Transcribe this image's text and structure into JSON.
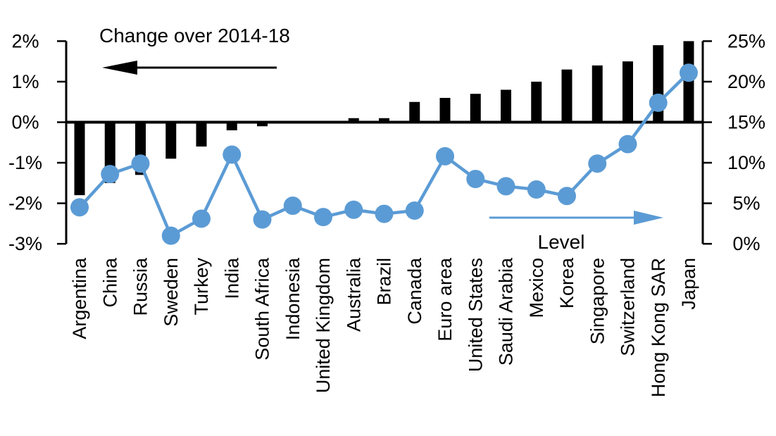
{
  "chart_data": {
    "type": "combo-bar-line",
    "categories": [
      "Argentina",
      "China",
      "Russia",
      "Sweden",
      "Turkey",
      "India",
      "South Africa",
      "Indonesia",
      "United Kingdom",
      "Australia",
      "Brazil",
      "Canada",
      "Euro area",
      "United States",
      "Saudi Arabia",
      "Mexico",
      "Korea",
      "Singapore",
      "Switzerland",
      "Hong Kong SAR",
      "Japan"
    ],
    "series": [
      {
        "name": "Change over 2014-18",
        "type": "bar",
        "axis": "left",
        "color": "#000000",
        "values": [
          -1.8,
          -1.5,
          -1.3,
          -0.9,
          -0.6,
          -0.2,
          -0.1,
          0,
          0,
          0.1,
          0.1,
          0.5,
          0.6,
          0.7,
          0.8,
          1.0,
          1.3,
          1.4,
          1.5,
          1.9,
          2.0
        ]
      },
      {
        "name": "Level",
        "type": "line",
        "axis": "right",
        "color": "#5b9bd5",
        "values": [
          4.5,
          8.6,
          9.9,
          1.0,
          3.1,
          11.0,
          3.0,
          4.7,
          3.3,
          4.2,
          3.7,
          4.1,
          10.8,
          8.0,
          7.1,
          6.7,
          5.9,
          9.9,
          12.3,
          17.4,
          21.1
        ]
      }
    ],
    "left_axis": {
      "tick_values": [
        2,
        1,
        0,
        -1,
        -2,
        -3
      ],
      "tick_labels": [
        "2%",
        "1%",
        "0%",
        "-1%",
        "-2%",
        "-3%"
      ],
      "min": -3,
      "max": 2
    },
    "right_axis": {
      "tick_values": [
        25,
        20,
        15,
        10,
        5,
        0
      ],
      "tick_labels": [
        "25%",
        "20%",
        "15%",
        "10%",
        "5%",
        "0%"
      ],
      "min": 0,
      "max": 25
    },
    "grid": "off",
    "legend": "none (labels with directional arrows point to each axis)",
    "annotations": {
      "left_arrow_points_to": "left axis (bars)",
      "right_arrow_points_to": "right axis (line)"
    },
    "colors": {
      "bar": "#000000",
      "line": "#5b9bd5",
      "text": "#000000",
      "background": "#ffffff"
    }
  }
}
